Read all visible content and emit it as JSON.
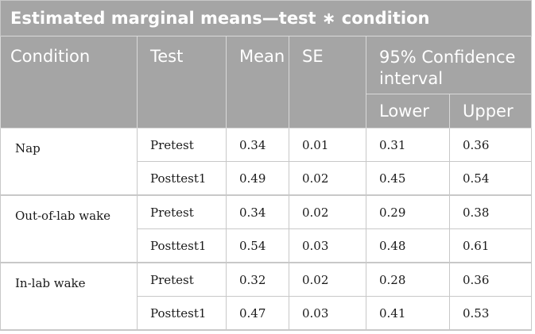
{
  "title": "Estimated marginal means—test ∗ condition",
  "headers": {
    "condition": "Condition",
    "test": "Test",
    "mean": "Mean",
    "se": "SE",
    "ci": "95% Confidence interval",
    "lower": "Lower",
    "upper": "Upper"
  },
  "groups": [
    {
      "condition": "Nap",
      "rows": [
        {
          "test": "Pretest",
          "mean": "0.34",
          "se": "0.01",
          "lower": "0.31",
          "upper": "0.36"
        },
        {
          "test": "Posttest1",
          "mean": "0.49",
          "se": "0.02",
          "lower": "0.45",
          "upper": "0.54"
        }
      ]
    },
    {
      "condition": "Out-of-lab wake",
      "rows": [
        {
          "test": "Pretest",
          "mean": "0.34",
          "se": "0.02",
          "lower": "0.29",
          "upper": "0.38"
        },
        {
          "test": "Posttest1",
          "mean": "0.54",
          "se": "0.03",
          "lower": "0.48",
          "upper": "0.61"
        }
      ]
    },
    {
      "condition": "In-lab wake",
      "rows": [
        {
          "test": "Pretest",
          "mean": "0.32",
          "se": "0.02",
          "lower": "0.28",
          "upper": "0.36"
        },
        {
          "test": "Posttest1",
          "mean": "0.47",
          "se": "0.03",
          "lower": "0.41",
          "upper": "0.53"
        }
      ]
    }
  ]
}
